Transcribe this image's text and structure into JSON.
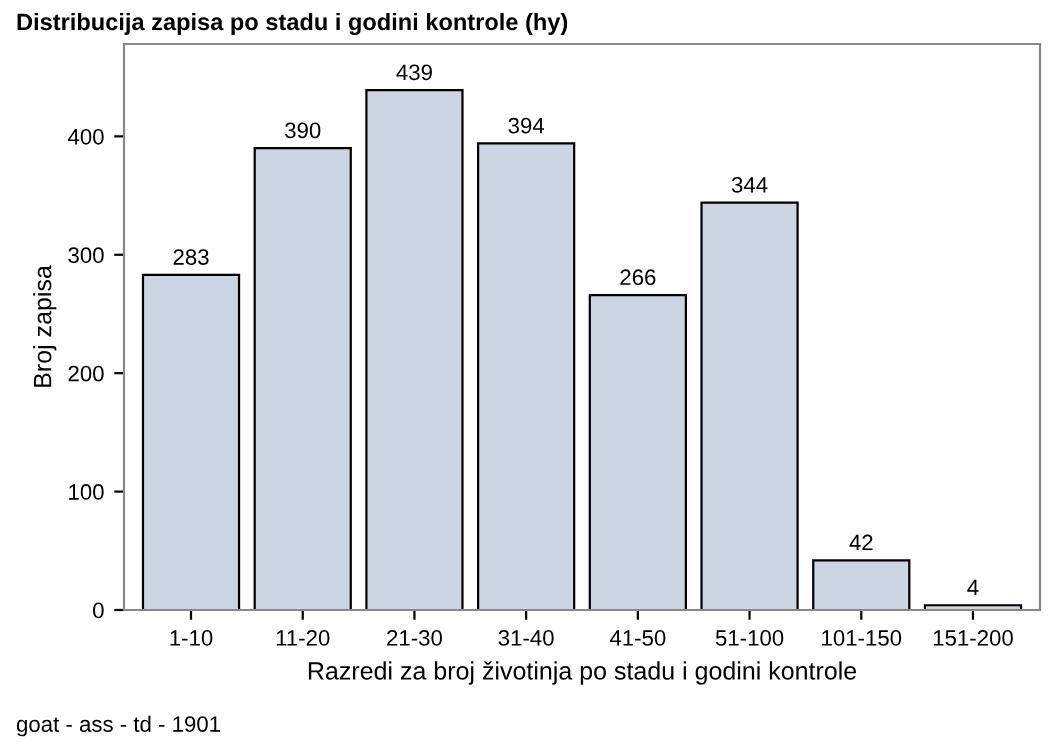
{
  "chart_data": {
    "type": "bar",
    "title": "Distribucija zapisa po stadu i godini kontrole (hy)",
    "xlabel": "Razredi za broj životinja po stadu i godini kontrole",
    "ylabel": "Broj zapisa",
    "categories": [
      "1-10",
      "11-20",
      "21-30",
      "31-40",
      "41-50",
      "51-100",
      "101-150",
      "151-200"
    ],
    "values": [
      283,
      390,
      439,
      394,
      266,
      344,
      42,
      4
    ],
    "color": "#cbd5e3",
    "ylim": [
      0,
      478
    ],
    "yticks": [
      0,
      100,
      200,
      300,
      400
    ],
    "data_labels": true,
    "grid": false,
    "legend": false,
    "annotations": [
      "goat - ass - td - 1901"
    ]
  }
}
